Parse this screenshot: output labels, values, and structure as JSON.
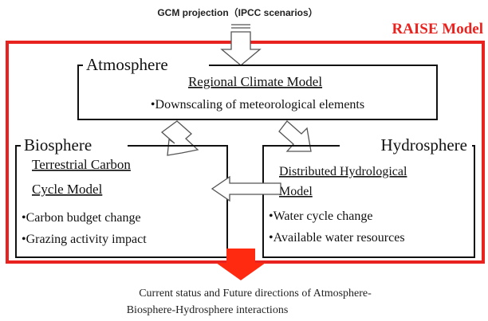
{
  "top_input": "GCM projection（IPCC scenarios）",
  "model_title": "RAISE Model",
  "atmosphere": {
    "label": "Atmosphere",
    "model": "Regional Climate Model",
    "items": [
      "•Downscaling of meteorological elements"
    ]
  },
  "biosphere": {
    "label": "Biosphere",
    "model": [
      "Terrestrial Carbon",
      "Cycle Model"
    ],
    "items": [
      "•Carbon budget change",
      "•Grazing activity impact"
    ]
  },
  "hydrosphere": {
    "label": "Hydrosphere",
    "model": [
      "Distributed Hydrological",
      "Model"
    ],
    "items": [
      "•Water cycle change",
      "•Available water resources"
    ]
  },
  "output": [
    "Current status and Future directions of Atmosphere-",
    "Biosphere-Hydrosphere interactions"
  ]
}
